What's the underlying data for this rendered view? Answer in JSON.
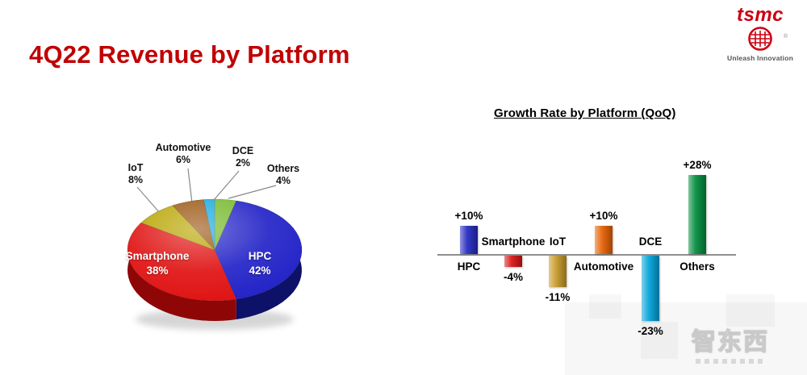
{
  "page": {
    "title": "4Q22 Revenue by Platform"
  },
  "logo": {
    "brand": "tsmc",
    "registered": "®",
    "tagline": "Unleash Innovation",
    "brand_color": "#cc0011",
    "wafer_icon": "tsmc-wafer-icon"
  },
  "watermark": {
    "text": "智东西"
  },
  "chart_data": [
    {
      "type": "pie",
      "title": "4Q22 Revenue by Platform",
      "unit": "%",
      "style": "3d-pie",
      "segments": [
        {
          "label": "Others",
          "value": 4,
          "pct": "4%",
          "color": "#76b82a",
          "side_color": "#4e7d1a"
        },
        {
          "label": "HPC",
          "value": 42,
          "pct": "42%",
          "color": "#2323c8",
          "side_color": "#0d1168"
        },
        {
          "label": "Smartphone",
          "value": 38,
          "pct": "38%",
          "color": "#e01212",
          "side_color": "#8f0606"
        },
        {
          "label": "IoT",
          "value": 8,
          "pct": "8%",
          "color": "#b8a400",
          "side_color": "#7c6e00"
        },
        {
          "label": "Automotive",
          "value": 6,
          "pct": "6%",
          "color": "#9a5410",
          "side_color": "#64350a"
        },
        {
          "label": "DCE",
          "value": 2,
          "pct": "2%",
          "color": "#18a8e0",
          "side_color": "#0d6f96"
        }
      ],
      "label_placement": "Smartphone and HPC inside slices, others outside with leader lines"
    },
    {
      "type": "bar",
      "title": "Growth Rate by Platform (QoQ)",
      "categories": [
        "HPC",
        "Smartphone",
        "IoT",
        "Automotive",
        "DCE",
        "Others"
      ],
      "values": [
        10,
        -4,
        -11,
        10,
        -23,
        28
      ],
      "value_labels": [
        "+10%",
        "-4%",
        "-11%",
        "+10%",
        "-23%",
        "+28%"
      ],
      "colors": [
        "#2328c0",
        "#d81414",
        "#c79a28",
        "#e66000",
        "#00a2da",
        "#008c3c"
      ],
      "unit": "%",
      "baseline": 0,
      "ylim": [
        -25,
        30
      ],
      "grid": false,
      "legend": false
    }
  ]
}
